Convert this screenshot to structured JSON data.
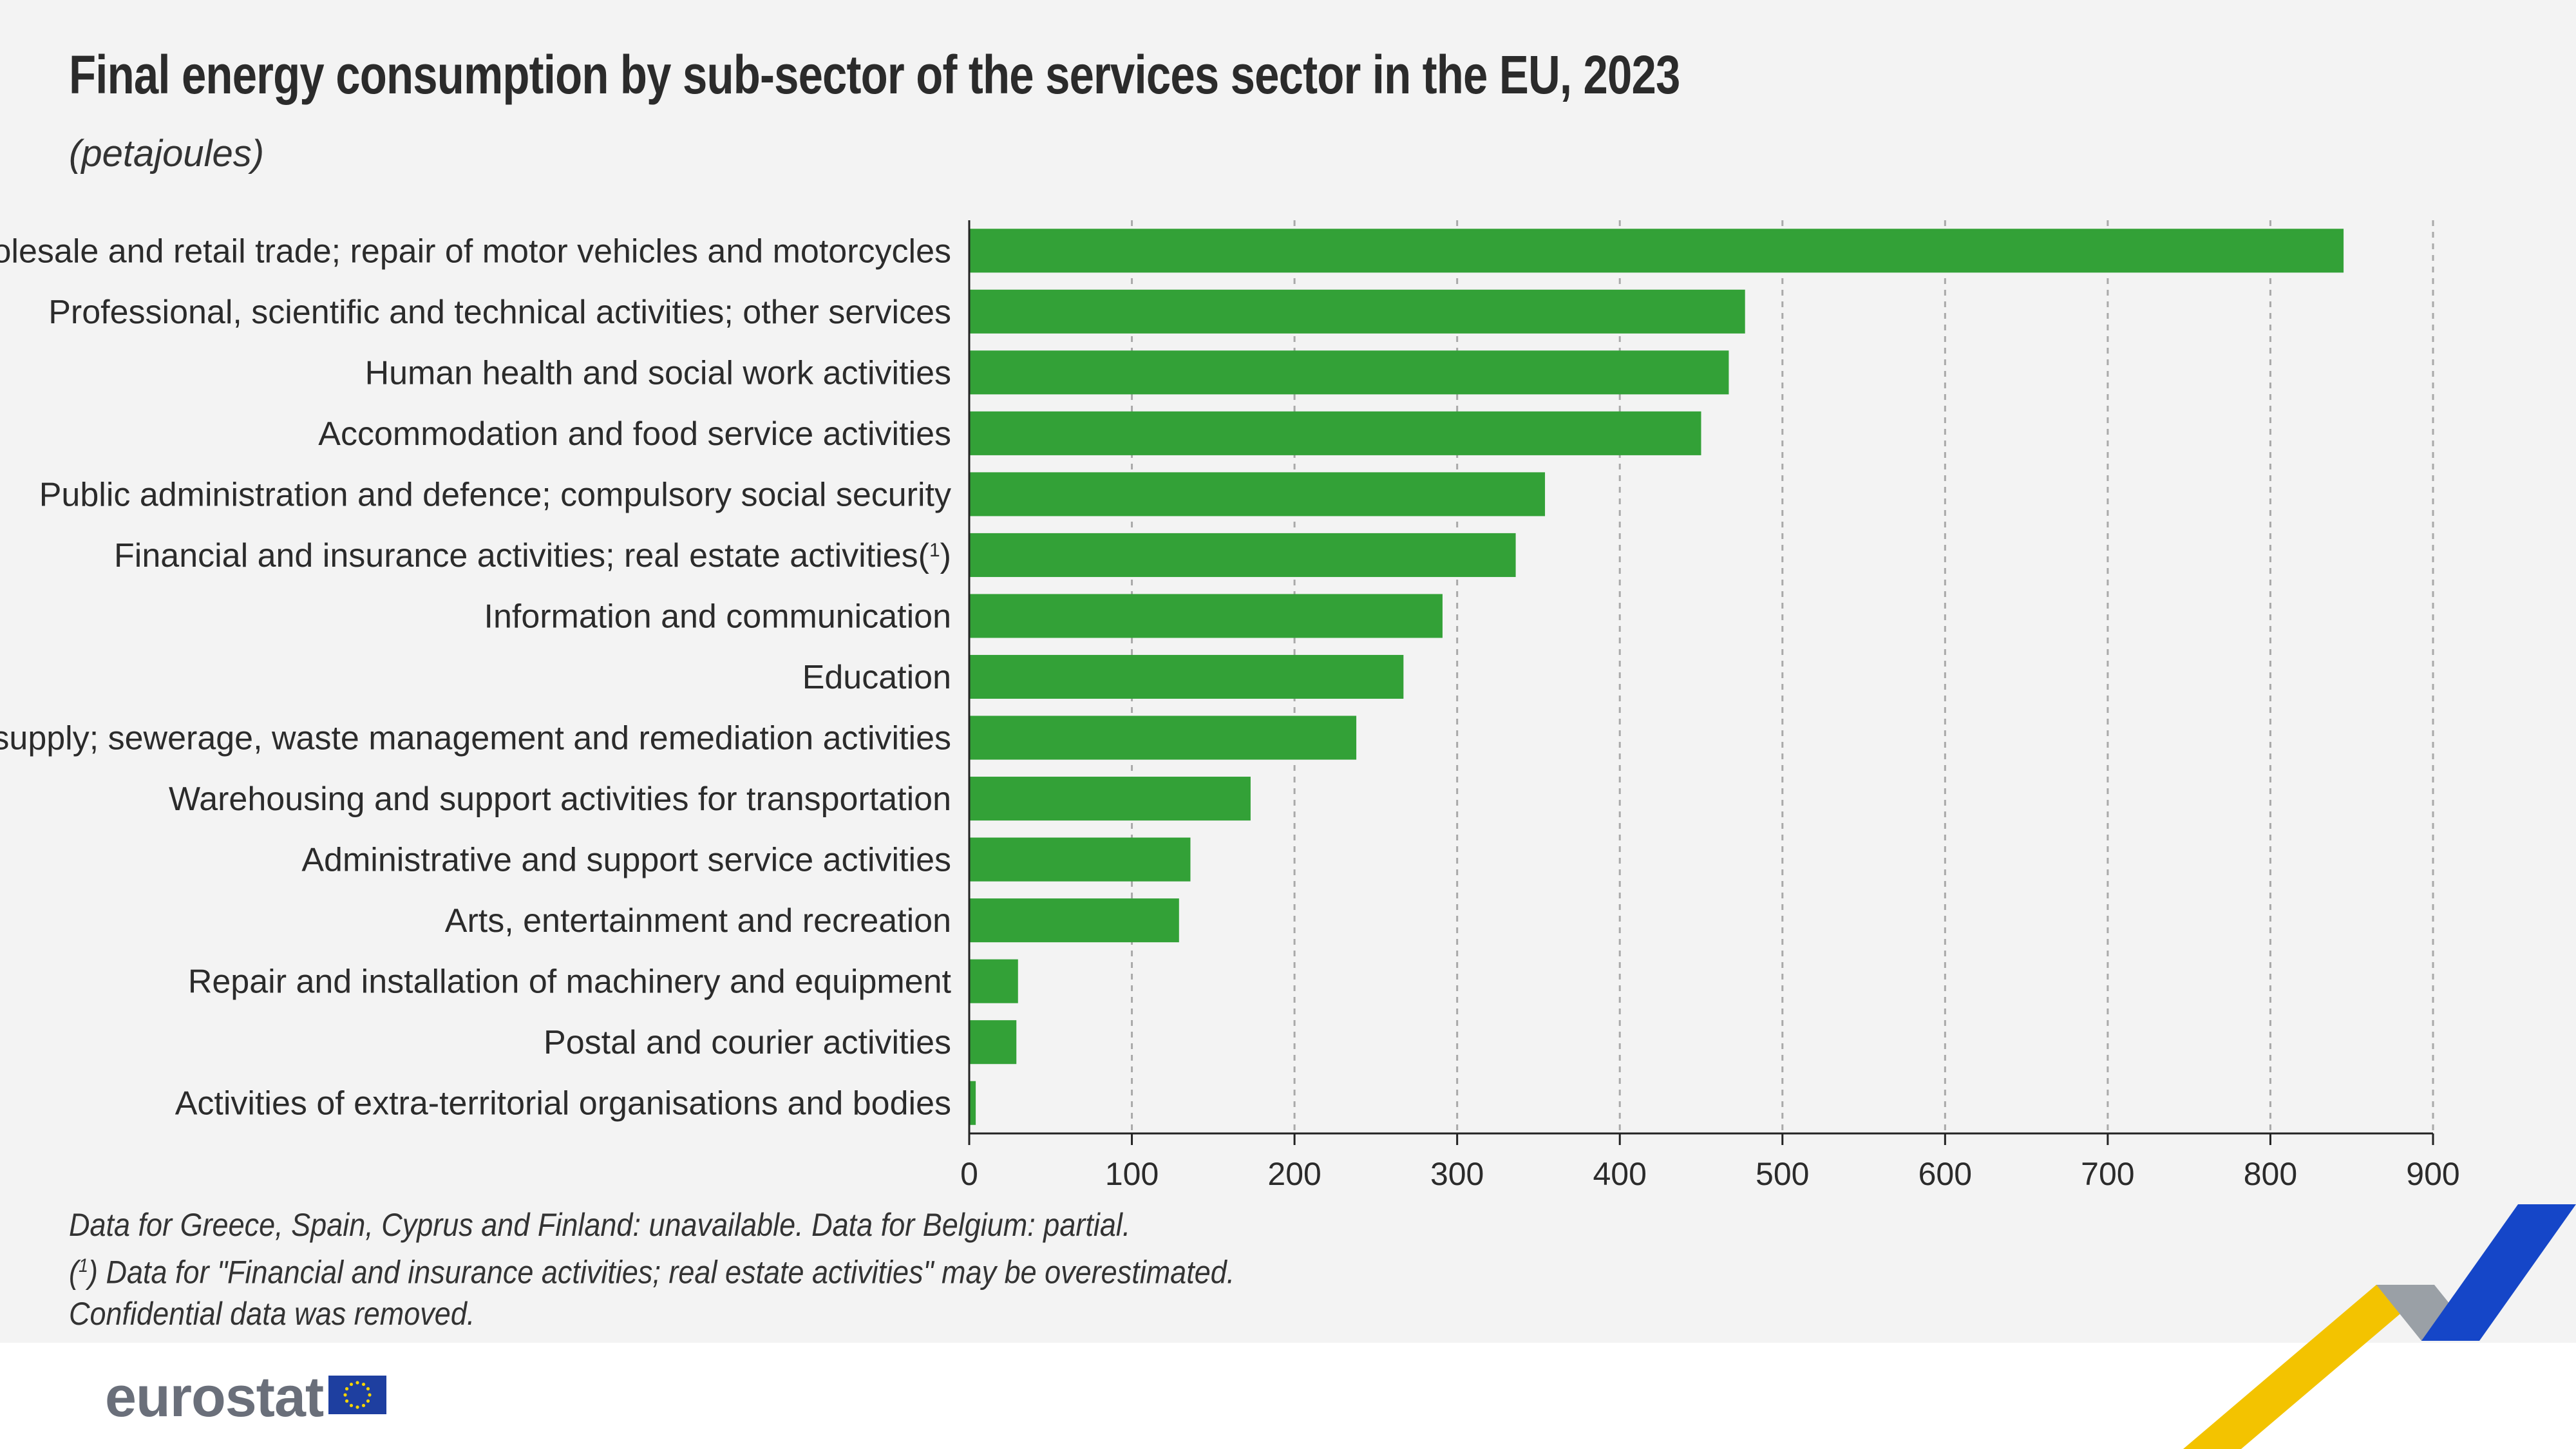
{
  "header": {
    "title": "Final energy consumption by sub-sector of the services sector in the EU, 2023",
    "subtitle": "(petajoules)"
  },
  "chart_data": {
    "type": "bar",
    "orientation": "horizontal",
    "title": "Final energy consumption by sub-sector of the services sector in the EU, 2023",
    "unit_label": "(petajoules)",
    "xlabel": "",
    "ylabel": "",
    "xlim": [
      0,
      900
    ],
    "ticks": [
      0,
      100,
      200,
      300,
      400,
      500,
      600,
      700,
      800,
      900
    ],
    "grid": "vertical-dashed",
    "color": "#33a137",
    "categories": [
      "Wholesale and retail trade; repair of motor vehicles and motorcycles",
      "Professional, scientific and technical activities; other services",
      "Human health and social work activities",
      "Accommodation and food service activities",
      "Public administration and defence; compulsory social security",
      "Financial and insurance activities; real estate activities(1)",
      "Information and communication",
      "Education",
      "Water supply; sewerage, waste management and remediation activities",
      "Warehousing and support activities for transportation",
      "Administrative and support service activities",
      "Arts, entertainment and recreation",
      "Repair and installation of machinery and equipment",
      "Postal and courier activities",
      "Activities of extra-territorial organisations and bodies"
    ],
    "values": [
      845,
      477,
      467,
      450,
      354,
      336,
      291,
      267,
      238,
      173,
      136,
      129,
      30,
      29,
      4
    ]
  },
  "notes": {
    "line1": "Data for Greece, Spain, Cyprus and Finland: unavailable. Data for Belgium: partial.",
    "line2_sup": "1",
    "line2_text": " Data for \"Financial and insurance activities; real estate activities\" may be overestimated.",
    "line3": "Confidential data was removed."
  },
  "footer": {
    "logo_text": "eurostat",
    "flag_icon": "eu-flag-icon",
    "flag_color": "#1e3fa0",
    "star_color": "#f5d400",
    "deco_colors": [
      "#f3c300",
      "#9aa0a6",
      "#1546c8"
    ]
  }
}
